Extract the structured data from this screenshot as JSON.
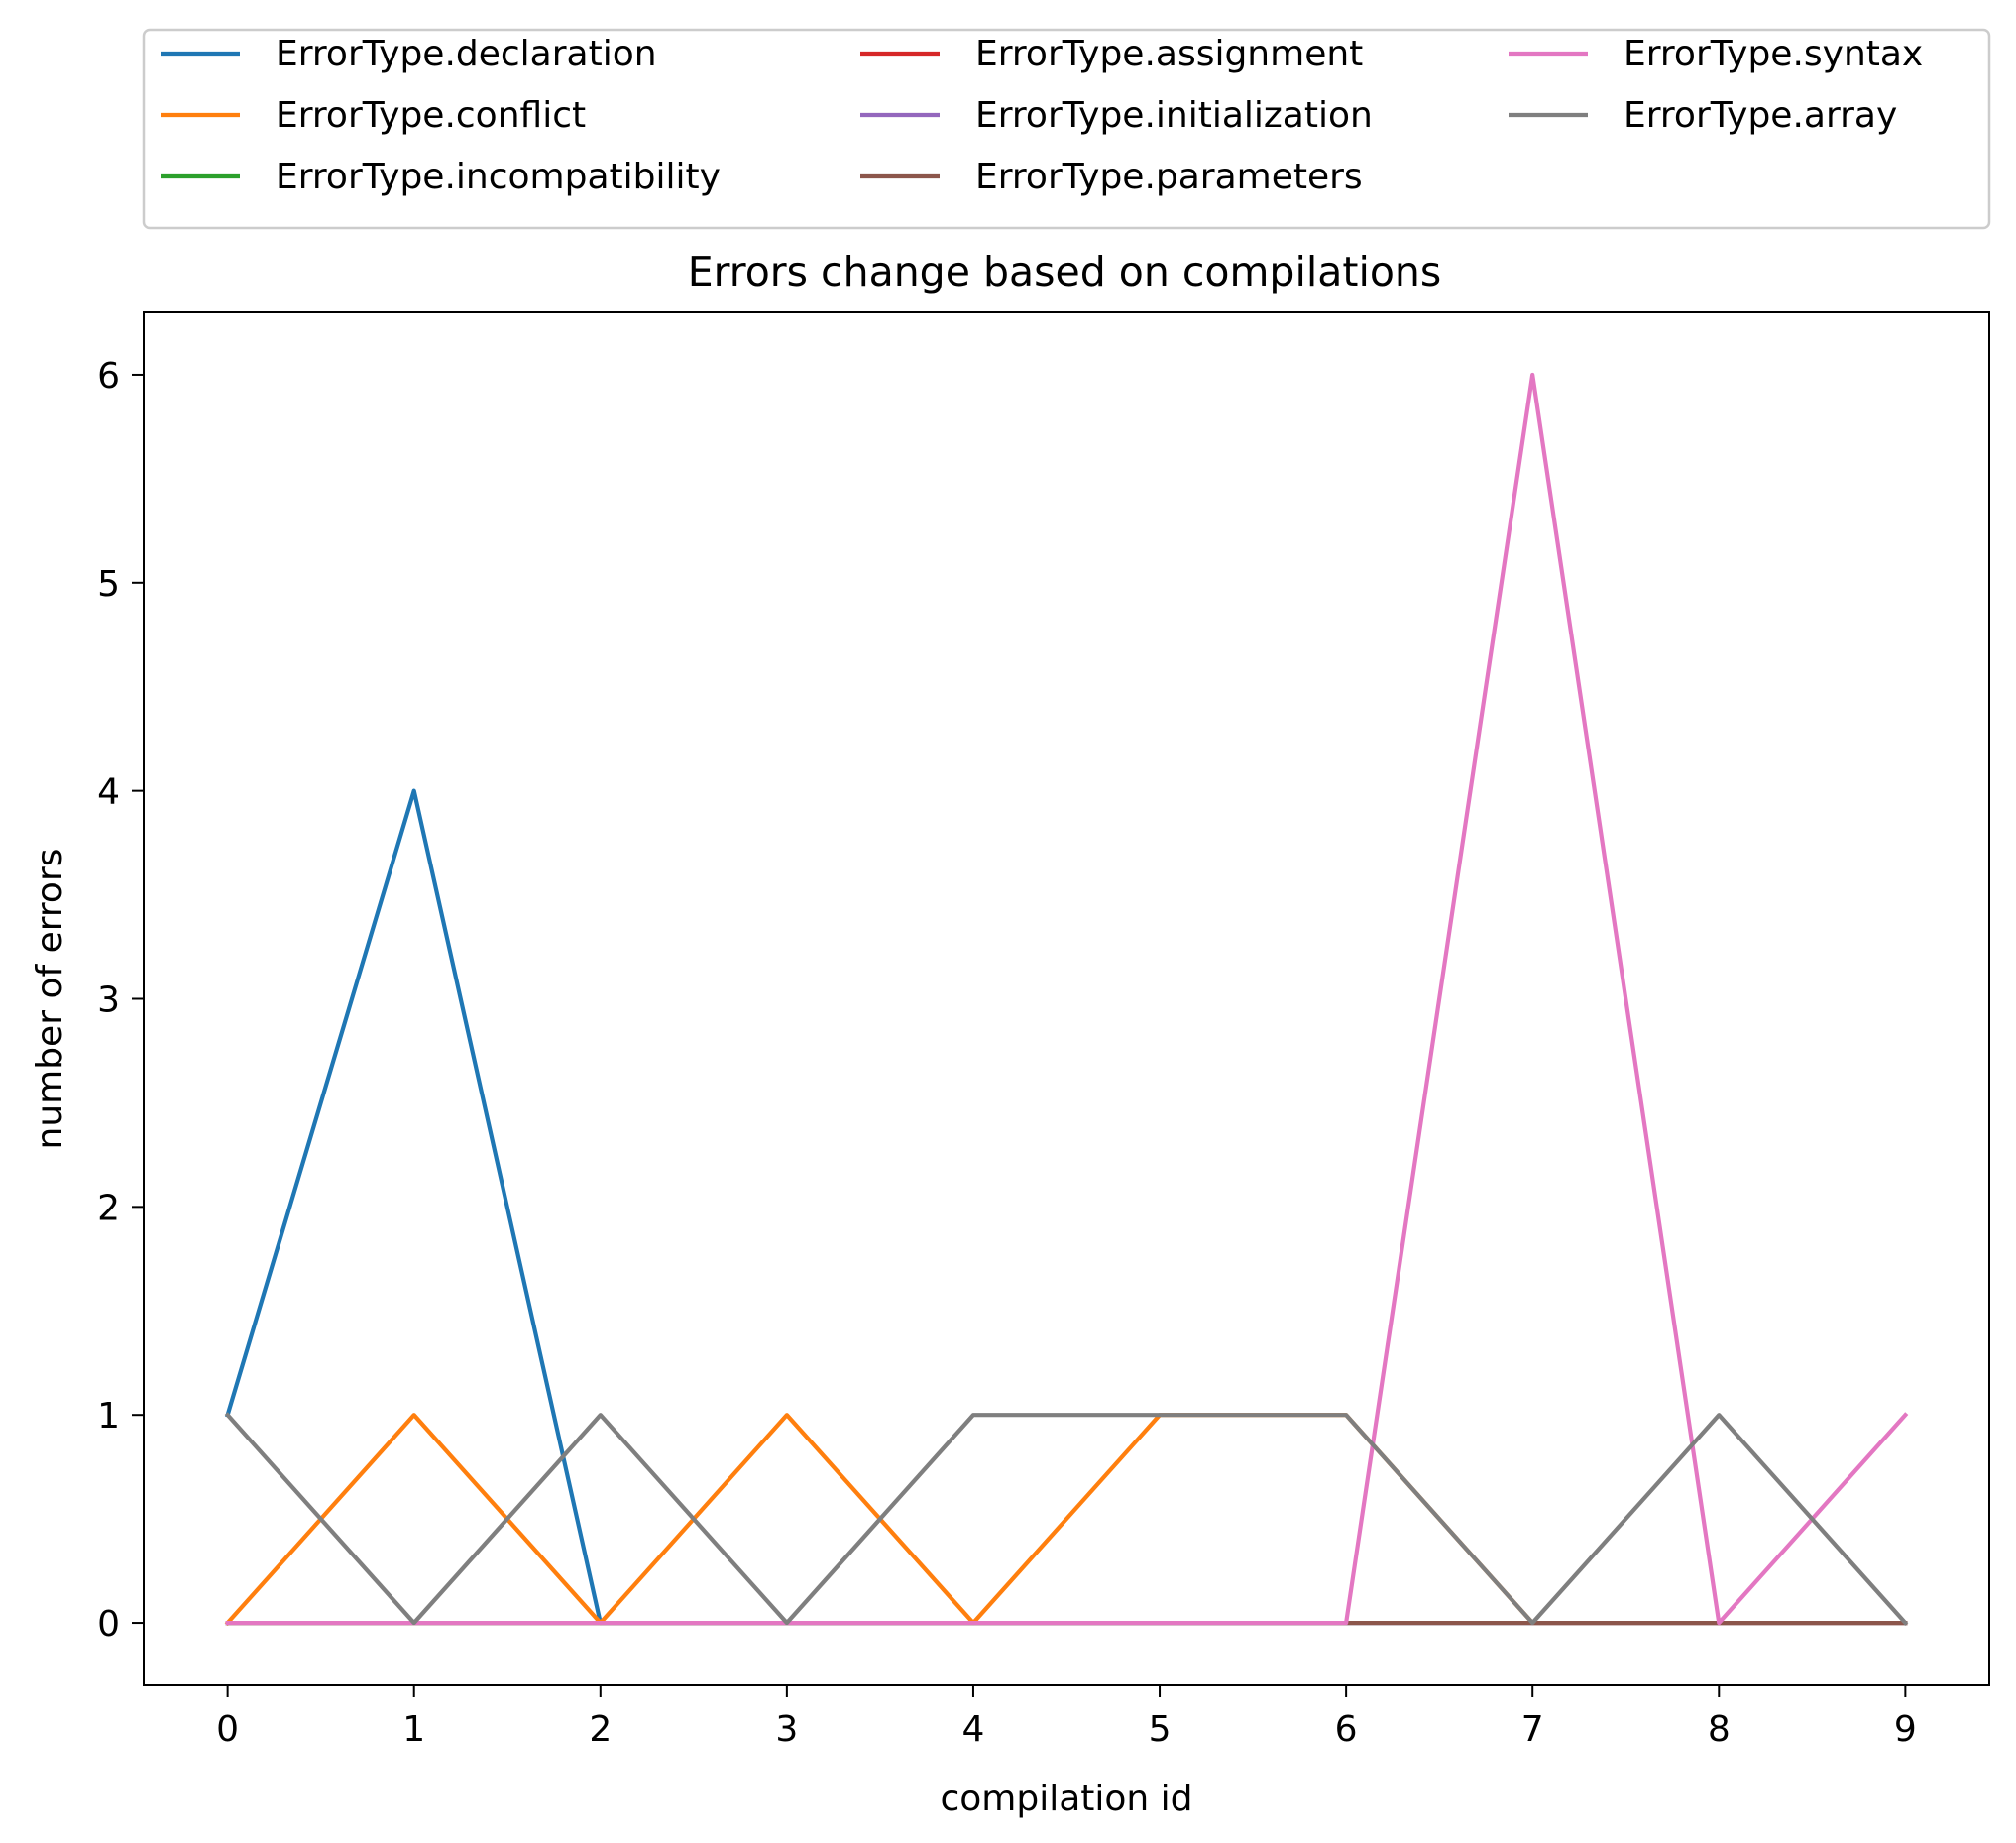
{
  "chart_data": {
    "type": "line",
    "title": "Errors change based on compilations",
    "xlabel": "compilation id",
    "ylabel": "number of errors",
    "x": [
      0,
      1,
      2,
      3,
      4,
      5,
      6,
      7,
      8,
      9
    ],
    "xticks": [
      "0",
      "1",
      "2",
      "3",
      "4",
      "5",
      "6",
      "7",
      "8",
      "9"
    ],
    "yticks": [
      "0",
      "1",
      "2",
      "3",
      "4",
      "5",
      "6"
    ],
    "xlim": [
      -0.45,
      9.45
    ],
    "ylim": [
      -0.3,
      6.3
    ],
    "grid": false,
    "legend_position": "above plot, 3 columns",
    "series": [
      {
        "name": "ErrorType.declaration",
        "color": "#1f77b4",
        "values": [
          1,
          4,
          0,
          0,
          0,
          0,
          0,
          0,
          0,
          0
        ]
      },
      {
        "name": "ErrorType.conflict",
        "color": "#ff7f0e",
        "values": [
          0,
          1,
          0,
          1,
          0,
          1,
          1,
          0,
          0,
          0
        ]
      },
      {
        "name": "ErrorType.incompatibility",
        "color": "#2ca02c",
        "values": [
          0,
          0,
          0,
          0,
          0,
          0,
          0,
          0,
          0,
          0
        ]
      },
      {
        "name": "ErrorType.assignment",
        "color": "#d62728",
        "values": [
          0,
          0,
          0,
          0,
          0,
          0,
          0,
          0,
          0,
          0
        ]
      },
      {
        "name": "ErrorType.initialization",
        "color": "#9467bd",
        "values": [
          0,
          0,
          0,
          0,
          0,
          0,
          0,
          0,
          0,
          0
        ]
      },
      {
        "name": "ErrorType.parameters",
        "color": "#8c564b",
        "values": [
          0,
          0,
          0,
          0,
          0,
          0,
          0,
          0,
          0,
          0
        ]
      },
      {
        "name": "ErrorType.syntax",
        "color": "#e377c2",
        "values": [
          0,
          0,
          0,
          0,
          0,
          0,
          0,
          6,
          0,
          1
        ]
      },
      {
        "name": "ErrorType.array",
        "color": "#7f7f7f",
        "values": [
          1,
          0,
          1,
          0,
          1,
          1,
          1,
          0,
          1,
          0
        ]
      }
    ]
  }
}
